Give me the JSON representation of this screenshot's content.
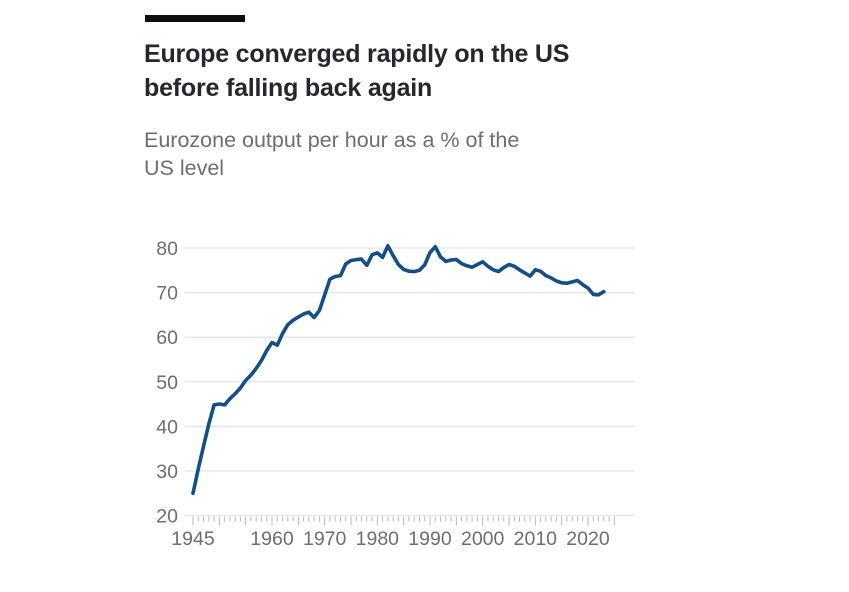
{
  "header": {
    "title": "Europe converged rapidly on the US before falling back again",
    "subtitle": "Eurozone output per hour as a % of the US level"
  },
  "colors": {
    "background": "#ffffff",
    "top_rule": "#0d0d0d",
    "title": "#24272c",
    "subtitle": "#6e6e6e",
    "axis_label": "#6e6e6e",
    "gridline": "#e5e5e5",
    "tick": "#b9b9b9",
    "line": "#134e87"
  },
  "chart_data": {
    "type": "line",
    "title": "Europe converged rapidly on the US before falling back again",
    "subtitle": "Eurozone output per hour as a % of the US level",
    "series_name": "Eurozone output per hour as a % of the US level",
    "x": [
      1945,
      1946,
      1947,
      1948,
      1949,
      1950,
      1951,
      1952,
      1953,
      1954,
      1955,
      1956,
      1957,
      1958,
      1959,
      1960,
      1961,
      1962,
      1963,
      1964,
      1965,
      1966,
      1967,
      1968,
      1969,
      1970,
      1971,
      1972,
      1973,
      1974,
      1975,
      1976,
      1977,
      1978,
      1979,
      1980,
      1981,
      1982,
      1983,
      1984,
      1985,
      1986,
      1987,
      1988,
      1989,
      1990,
      1991,
      1992,
      1993,
      1994,
      1995,
      1996,
      1997,
      1998,
      1999,
      2000,
      2001,
      2002,
      2003,
      2004,
      2005,
      2006,
      2007,
      2008,
      2009,
      2010,
      2011,
      2012,
      2013,
      2014,
      2015,
      2016,
      2017,
      2018,
      2019,
      2020,
      2021,
      2022,
      2023
    ],
    "values": [
      25.0,
      30.5,
      35.5,
      40.5,
      44.8,
      45.0,
      44.8,
      46.2,
      47.3,
      48.6,
      50.3,
      51.5,
      53.0,
      54.8,
      57.0,
      58.8,
      58.2,
      60.8,
      62.8,
      63.8,
      64.5,
      65.2,
      65.6,
      64.4,
      66.0,
      69.5,
      73.0,
      73.6,
      73.8,
      76.4,
      77.2,
      77.4,
      77.5,
      76.1,
      78.5,
      78.9,
      77.9,
      80.5,
      78.3,
      76.3,
      75.2,
      74.8,
      74.7,
      75.0,
      76.2,
      79.0,
      80.3,
      78.0,
      77.0,
      77.3,
      77.4,
      76.5,
      76.0,
      75.7,
      76.3,
      76.9,
      75.9,
      75.1,
      74.7,
      75.6,
      76.3,
      75.9,
      75.1,
      74.4,
      73.7,
      75.1,
      74.8,
      73.8,
      73.3,
      72.6,
      72.2,
      72.1,
      72.4,
      72.7,
      71.8,
      71.0,
      69.6,
      69.5,
      70.2
    ],
    "xlabel": "",
    "ylabel": "",
    "ylim": [
      20,
      80
    ],
    "yticks": [
      20,
      30,
      40,
      50,
      60,
      70,
      80
    ],
    "xticks": [
      1945,
      1960,
      1970,
      1980,
      1990,
      2000,
      2010,
      2020
    ],
    "xlim": [
      1945,
      2025
    ],
    "minor_tick_step_years": 1,
    "major_tick_step_years": 5,
    "grid": "horizontal",
    "legend": "none"
  }
}
